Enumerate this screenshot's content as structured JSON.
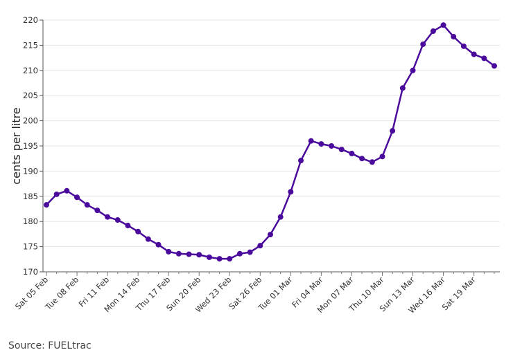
{
  "chart_data": {
    "type": "line",
    "title": "",
    "xlabel": "",
    "ylabel": "cents per litre",
    "ylim": [
      170,
      220
    ],
    "yticks": [
      170,
      175,
      180,
      185,
      190,
      195,
      200,
      205,
      210,
      215,
      220
    ],
    "grid": true,
    "color": "#4a0a9c",
    "x": [
      "Sat 05 Feb",
      "Sun 06 Feb",
      "Mon 07 Feb",
      "Tue 08 Feb",
      "Wed 09 Feb",
      "Thu 10 Feb",
      "Fri 11 Feb",
      "Sat 12 Feb",
      "Sun 13 Feb",
      "Mon 14 Feb",
      "Tue 15 Feb",
      "Wed 16 Feb",
      "Thu 17 Feb",
      "Fri 18 Feb",
      "Sat 19 Feb",
      "Sun 20 Feb",
      "Mon 21 Feb",
      "Tue 22 Feb",
      "Wed 23 Feb",
      "Thu 24 Feb",
      "Fri 25 Feb",
      "Sat 26 Feb",
      "Sun 27 Feb",
      "Mon 28 Feb",
      "Tue 01 Mar",
      "Wed 02 Mar",
      "Thu 03 Mar",
      "Fri 04 Mar",
      "Sat 05 Mar",
      "Sun 06 Mar",
      "Mon 07 Mar",
      "Tue 08 Mar",
      "Wed 09 Mar",
      "Thu 10 Mar",
      "Fri 11 Mar",
      "Sat 12 Mar",
      "Sun 13 Mar",
      "Mon 14 Mar",
      "Tue 15 Mar",
      "Wed 16 Mar",
      "Thu 17 Mar",
      "Fri 18 Mar",
      "Sat 19 Mar",
      "Sun 20 Mar",
      "Mon 21 Mar"
    ],
    "xticks": [
      "Sat 05 Feb",
      "Tue 08 Feb",
      "Fri 11 Feb",
      "Mon 14 Feb",
      "Thu 17 Feb",
      "Sun 20 Feb",
      "Wed 23 Feb",
      "Sat 26 Feb",
      "Tue 01 Mar",
      "Fri 04 Mar",
      "Mon 07 Mar",
      "Thu 10 Mar",
      "Sun 13 Mar",
      "Wed 16 Mar",
      "Sat 19 Mar"
    ],
    "values": [
      183.3,
      185.4,
      186.1,
      184.8,
      183.3,
      182.2,
      180.9,
      180.3,
      179.2,
      178.0,
      176.5,
      175.4,
      174.0,
      173.6,
      173.5,
      173.4,
      172.9,
      172.6,
      172.6,
      173.6,
      173.9,
      175.2,
      177.4,
      180.9,
      185.9,
      192.1,
      196.0,
      195.4,
      195.0,
      194.3,
      193.5,
      192.5,
      191.8,
      192.9,
      198.0,
      206.5,
      210.0,
      215.2,
      217.8,
      219.0,
      216.7,
      214.8,
      213.2,
      212.4,
      210.9
    ]
  },
  "source": "Source: FUELtrac"
}
